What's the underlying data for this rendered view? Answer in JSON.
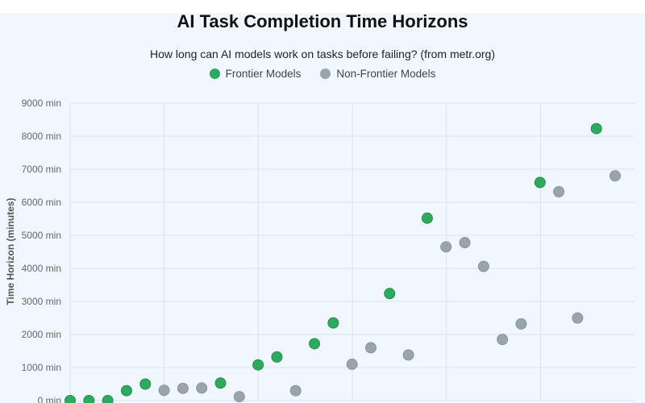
{
  "chart_data": {
    "type": "scatter",
    "title": "AI Task Completion Time Horizons",
    "subtitle": "How long can AI models work on tasks before failing? (from metr.org)",
    "ylabel": "Time Horizon (minutes)",
    "xlabel": "",
    "ylim": [
      0,
      9000
    ],
    "yticks": [
      0,
      1000,
      2000,
      3000,
      4000,
      5000,
      6000,
      7000,
      8000,
      9000
    ],
    "ytick_suffix": " min",
    "grid": true,
    "legend_position": "top-center",
    "series": [
      {
        "name": "Frontier Models",
        "color": "#2eaa5e",
        "points": [
          {
            "x": 0,
            "y": 0
          },
          {
            "x": 1,
            "y": 0
          },
          {
            "x": 2,
            "y": 0
          },
          {
            "x": 3,
            "y": 300
          },
          {
            "x": 4,
            "y": 500
          },
          {
            "x": 8,
            "y": 530
          },
          {
            "x": 10,
            "y": 1080
          },
          {
            "x": 11,
            "y": 1320
          },
          {
            "x": 13,
            "y": 1720
          },
          {
            "x": 14,
            "y": 2350
          },
          {
            "x": 17,
            "y": 3240
          },
          {
            "x": 19,
            "y": 5520
          },
          {
            "x": 25,
            "y": 6600
          },
          {
            "x": 28,
            "y": 8230
          }
        ]
      },
      {
        "name": "Non-Frontier Models",
        "color": "#9aa5ab",
        "points": [
          {
            "x": 5,
            "y": 310
          },
          {
            "x": 6,
            "y": 370
          },
          {
            "x": 7,
            "y": 380
          },
          {
            "x": 9,
            "y": 120
          },
          {
            "x": 12,
            "y": 300
          },
          {
            "x": 15,
            "y": 1100
          },
          {
            "x": 16,
            "y": 1600
          },
          {
            "x": 18,
            "y": 1380
          },
          {
            "x": 20,
            "y": 4650
          },
          {
            "x": 21,
            "y": 4780
          },
          {
            "x": 22,
            "y": 4060
          },
          {
            "x": 23,
            "y": 1850
          },
          {
            "x": 24,
            "y": 2320
          },
          {
            "x": 26,
            "y": 6320
          },
          {
            "x": 27,
            "y": 2500
          },
          {
            "x": 29,
            "y": 6800
          }
        ]
      }
    ]
  }
}
